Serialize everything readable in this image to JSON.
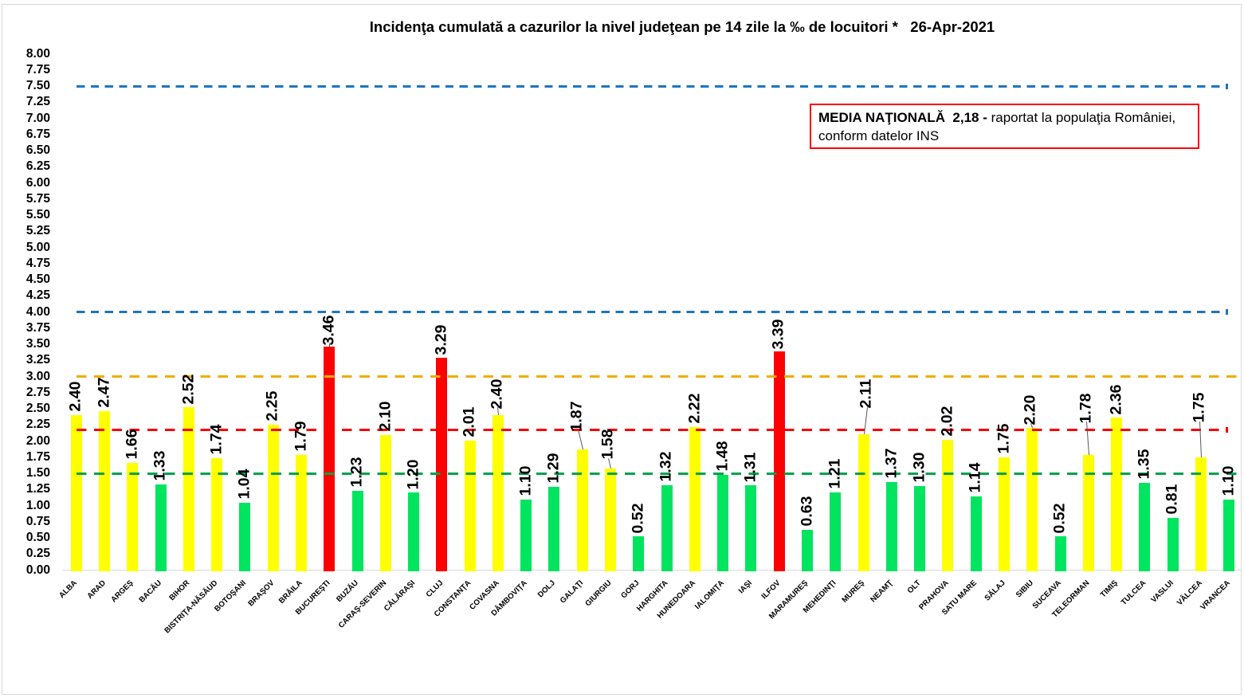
{
  "title": {
    "text": "Incidenţa cumulată a cazurilor la nivel judeţean pe 14 zile la ‰ de locuitori *",
    "date": "26-Apr-2021",
    "separator": "   "
  },
  "annotation": {
    "bold": "MEDIA NAŢIONALĂ  2,18 -",
    "regular": " raportat la populaţia României,",
    "line2": "conform datelor INS",
    "border_color": "#fe0000"
  },
  "chart_data": {
    "type": "bar",
    "categories": [
      "ALBA",
      "ARAD",
      "ARGEŞ",
      "BACĂU",
      "BIHOR",
      "BISTRIŢA-NĂSĂUD",
      "BOTOŞANI",
      "BRAŞOV",
      "BRĂILA",
      "BUCUREŞTI",
      "BUZĂU",
      "CARAŞ-SEVERIN",
      "CĂLĂRAŞI",
      "CLUJ",
      "CONSTANŢA",
      "COVASNA",
      "DÂMBOVIŢA",
      "DOLJ",
      "GALAŢI",
      "GIURGIU",
      "GORJ",
      "HARGHITA",
      "HUNEDOARA",
      "IALOMIŢA",
      "IAŞI",
      "ILFOV",
      "MARAMUREŞ",
      "MEHEDINŢI",
      "MUREŞ",
      "NEAMŢ",
      "OLT",
      "PRAHOVA",
      "SATU MARE",
      "SĂLAJ",
      "SIBIU",
      "SUCEAVA",
      "TELEORMAN",
      "TIMIŞ",
      "TULCEA",
      "VASLUI",
      "VÂLCEA",
      "VRANCEA"
    ],
    "values": [
      2.4,
      2.47,
      1.66,
      1.33,
      2.52,
      1.74,
      1.04,
      2.25,
      1.79,
      3.46,
      1.23,
      2.1,
      1.2,
      3.29,
      2.01,
      2.4,
      1.1,
      1.29,
      1.87,
      1.58,
      0.52,
      1.32,
      2.22,
      1.48,
      1.31,
      3.39,
      0.63,
      1.21,
      2.11,
      1.37,
      1.3,
      2.02,
      1.14,
      1.75,
      2.2,
      0.52,
      1.78,
      2.36,
      1.35,
      0.81,
      1.75,
      1.1
    ],
    "ylim": [
      0,
      8
    ],
    "y_ticks": [
      "8.00",
      "7.75",
      "7.50",
      "7.25",
      "7.00",
      "6.75",
      "6.50",
      "6.25",
      "6.00",
      "5.75",
      "5.50",
      "5.25",
      "5.00",
      "4.75",
      "4.50",
      "4.25",
      "4.00",
      "3.75",
      "3.50",
      "3.25",
      "3.00",
      "2.75",
      "2.50",
      "2.25",
      "2.00",
      "1.75",
      "1.50",
      "1.25",
      "1.00",
      "0.75",
      "0.50",
      "0.25",
      "0.00"
    ],
    "grid": false,
    "legend": false,
    "bar_color_rules": {
      "red_threshold": 3.0,
      "yellow_threshold": 1.5,
      "red": "#fe0000",
      "yellow": "#ffff00",
      "green": "#00e45f"
    },
    "reference_lines": [
      {
        "value": 7.5,
        "color": "#1f75bb",
        "style": "dashed",
        "dash": 10.3,
        "gap": 7.5,
        "end_cap": true
      },
      {
        "value": 4.0,
        "color": "#1f75bb",
        "style": "dashed",
        "dash": 10.3,
        "gap": 7.5,
        "end_cap": true
      },
      {
        "value": 3.0,
        "color": "#efad00",
        "style": "dashed",
        "dash": 12.6,
        "gap": 9.6,
        "end_cap": false
      },
      {
        "value": 2.18,
        "color": "#fa0000",
        "style": "dashed",
        "dash": 12.6,
        "gap": 9.6,
        "end_cap": true
      },
      {
        "value": 1.5,
        "color": "#00a24d",
        "style": "dashed",
        "dash": 12.6,
        "gap": 9.6,
        "end_cap": false
      }
    ],
    "label_leaders": {
      "BUCUREŞTI": {
        "len": 4,
        "dx": 0
      },
      "COVASNA": {
        "len": 10,
        "dx": -1
      },
      "GALAŢI": {
        "len": 25,
        "dx": -6
      },
      "GIURGIU": {
        "len": 13,
        "dx": -3
      },
      "MUREŞ": {
        "len": 34,
        "dx": 4
      },
      "SIBIU": {
        "len": 6,
        "dx": -2
      },
      "TELEORMAN": {
        "len": 42,
        "dx": -3
      },
      "VÂLCEA": {
        "len": 45,
        "dx": -2
      },
      "ILFOV": {
        "gap": 6
      },
      "CLUJ": {
        "gap": 6.5
      }
    }
  }
}
